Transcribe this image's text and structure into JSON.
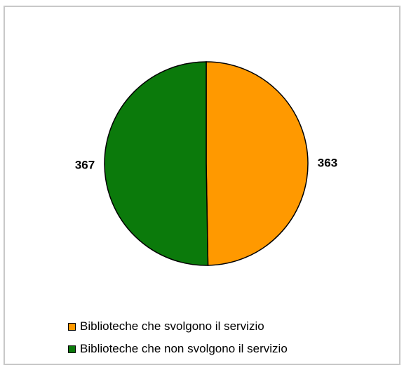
{
  "chart_data": {
    "type": "pie",
    "title": "",
    "slices": [
      {
        "label": "Biblioteche che svolgono il servizio",
        "value": 363,
        "color": "#ff9900"
      },
      {
        "label": "Biblioteche che non  svolgono il servizio",
        "value": 367,
        "color": "#0b7a0b"
      }
    ],
    "data_labels": [
      "363",
      "367"
    ],
    "legend_position": "bottom-left"
  }
}
